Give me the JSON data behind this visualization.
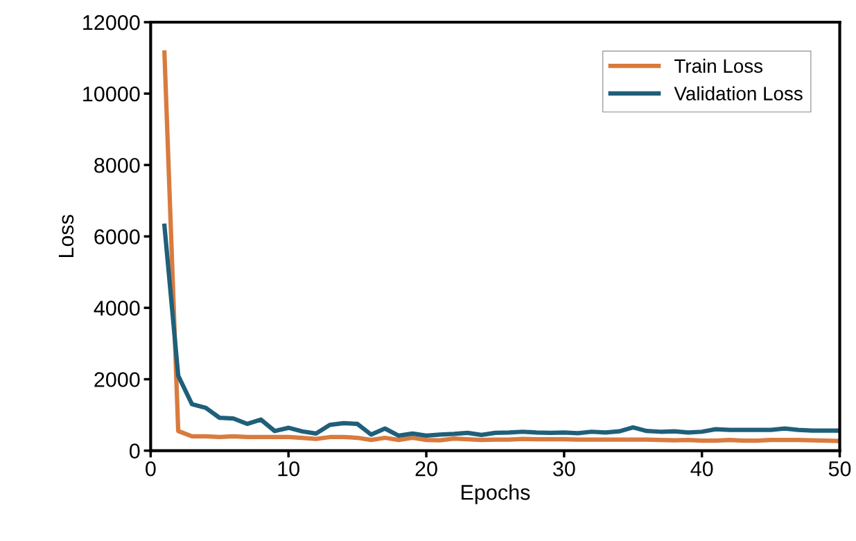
{
  "chart_data": {
    "type": "line",
    "xlabel": "Epochs",
    "ylabel": "Loss",
    "x": [
      1,
      2,
      3,
      4,
      5,
      6,
      7,
      8,
      9,
      10,
      11,
      12,
      13,
      14,
      15,
      16,
      17,
      18,
      19,
      20,
      21,
      22,
      23,
      24,
      25,
      26,
      27,
      28,
      29,
      30,
      31,
      32,
      33,
      34,
      35,
      36,
      37,
      38,
      39,
      40,
      41,
      42,
      43,
      44,
      45,
      46,
      47,
      48,
      49,
      50
    ],
    "series": [
      {
        "name": "Train Loss",
        "color": "#d97b3f",
        "values": [
          11150,
          550,
          400,
          400,
          380,
          400,
          380,
          380,
          380,
          380,
          360,
          330,
          380,
          380,
          360,
          300,
          360,
          300,
          360,
          300,
          290,
          340,
          320,
          300,
          310,
          310,
          330,
          320,
          320,
          320,
          310,
          310,
          310,
          310,
          310,
          310,
          300,
          290,
          300,
          280,
          280,
          300,
          280,
          280,
          300,
          300,
          300,
          290,
          280,
          270
        ]
      },
      {
        "name": "Validation Loss",
        "color": "#1f5f7a",
        "values": [
          6300,
          2100,
          1300,
          1200,
          920,
          900,
          750,
          870,
          550,
          640,
          540,
          480,
          720,
          770,
          750,
          450,
          620,
          420,
          480,
          420,
          450,
          470,
          500,
          440,
          500,
          510,
          530,
          510,
          500,
          510,
          490,
          530,
          510,
          540,
          650,
          550,
          530,
          540,
          510,
          530,
          600,
          580,
          580,
          580,
          580,
          620,
          580,
          560,
          560,
          560
        ]
      }
    ],
    "xlim": [
      0,
      50
    ],
    "xticks": [
      0,
      10,
      20,
      30,
      40,
      50
    ],
    "ylim": [
      0,
      12000
    ],
    "yticks": [
      0,
      2000,
      4000,
      6000,
      8000,
      10000,
      12000
    ],
    "grid": false,
    "legend": "top right",
    "marker": "none",
    "line_style": "solid"
  }
}
